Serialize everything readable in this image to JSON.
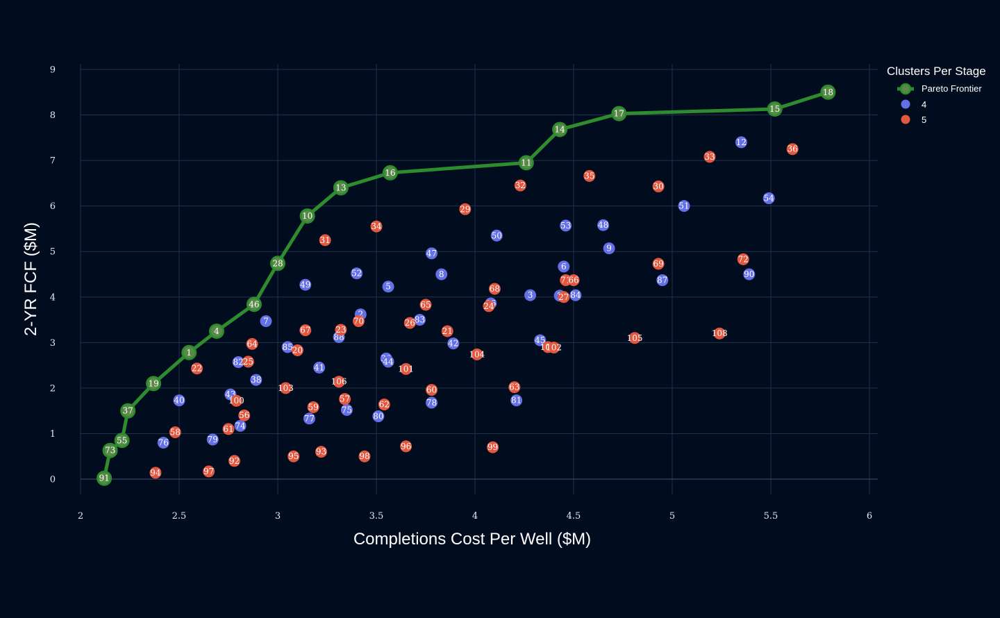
{
  "chart_data": {
    "type": "scatter",
    "title": "",
    "xlabel": "Completions Cost Per Well ($M)",
    "ylabel": "2-YR FCF ($M)",
    "xlim": [
      2,
      6.05
    ],
    "ylim": [
      -0.35,
      9.2
    ],
    "xticks": [
      2,
      2.5,
      3,
      3.5,
      4,
      4.5,
      5,
      5.5,
      6
    ],
    "xtick_labels": [
      "2",
      "2.5",
      "3",
      "3.5",
      "4",
      "4.5",
      "5",
      "5.5",
      "6"
    ],
    "yticks": [
      0,
      1,
      2,
      3,
      4,
      5,
      6,
      7,
      8,
      9
    ],
    "ytick_labels": [
      "0",
      "1",
      "2",
      "3",
      "4",
      "5",
      "6",
      "7",
      "8",
      "9"
    ],
    "grid": true,
    "legend": {
      "title": "Clusters Per Stage",
      "position": "top-right",
      "entries": [
        {
          "label": "Pareto Frontier",
          "kind": "line-marker",
          "color": "#2e8b2e"
        },
        {
          "label": "4",
          "kind": "marker",
          "color": "#6470e6"
        },
        {
          "label": "5",
          "kind": "marker",
          "color": "#e2573f"
        }
      ]
    },
    "colors": {
      "pareto_line": "#2e8b2e",
      "pareto_marker_fill": "#5a8a4a",
      "cluster_4": "#6470e6",
      "cluster_5": "#e2573f",
      "grid": "#22314a",
      "background": "#010c1e",
      "text": "#ffffff"
    },
    "pareto_frontier": [
      {
        "id": "91",
        "x": 2.12,
        "y": 0.02
      },
      {
        "id": "73",
        "x": 2.15,
        "y": 0.63
      },
      {
        "id": "55",
        "x": 2.21,
        "y": 0.85
      },
      {
        "id": "37",
        "x": 2.24,
        "y": 1.5
      },
      {
        "id": "19",
        "x": 2.37,
        "y": 2.1
      },
      {
        "id": "1",
        "x": 2.55,
        "y": 2.78
      },
      {
        "id": "4",
        "x": 2.69,
        "y": 3.25
      },
      {
        "id": "46",
        "x": 2.88,
        "y": 3.84
      },
      {
        "id": "28",
        "x": 3.0,
        "y": 4.74
      },
      {
        "id": "10",
        "x": 3.15,
        "y": 5.78
      },
      {
        "id": "13",
        "x": 3.32,
        "y": 6.4
      },
      {
        "id": "16",
        "x": 3.57,
        "y": 6.73
      },
      {
        "id": "11",
        "x": 4.26,
        "y": 6.95
      },
      {
        "id": "14",
        "x": 4.43,
        "y": 7.68
      },
      {
        "id": "17",
        "x": 4.73,
        "y": 8.03
      },
      {
        "id": "15",
        "x": 5.52,
        "y": 8.13
      },
      {
        "id": "18",
        "x": 5.79,
        "y": 8.5
      }
    ],
    "series": [
      {
        "name": "4",
        "points": [
          {
            "id": "12",
            "x": 5.35,
            "y": 7.4
          },
          {
            "id": "54",
            "x": 5.49,
            "y": 6.17
          },
          {
            "id": "51",
            "x": 5.06,
            "y": 6.0
          },
          {
            "id": "53",
            "x": 4.46,
            "y": 5.57
          },
          {
            "id": "48",
            "x": 4.65,
            "y": 5.58
          },
          {
            "id": "50",
            "x": 4.11,
            "y": 5.35
          },
          {
            "id": "9",
            "x": 4.68,
            "y": 5.07
          },
          {
            "id": "47",
            "x": 3.78,
            "y": 4.96
          },
          {
            "id": "6",
            "x": 4.45,
            "y": 4.67
          },
          {
            "id": "52",
            "x": 3.4,
            "y": 4.52
          },
          {
            "id": "8",
            "x": 3.83,
            "y": 4.5
          },
          {
            "id": "90",
            "x": 5.39,
            "y": 4.5
          },
          {
            "id": "87",
            "x": 4.95,
            "y": 4.37
          },
          {
            "id": "49",
            "x": 3.14,
            "y": 4.27
          },
          {
            "id": "5",
            "x": 3.56,
            "y": 4.23
          },
          {
            "id": "3",
            "x": 4.28,
            "y": 4.04
          },
          {
            "id": "2",
            "x": 4.43,
            "y": 4.03
          },
          {
            "id": "84",
            "x": 4.51,
            "y": 4.04
          },
          {
            "id": "86",
            "x": 4.08,
            "y": 3.86
          },
          {
            "id": "2",
            "x": 3.42,
            "y": 3.62
          },
          {
            "id": "7",
            "x": 2.94,
            "y": 3.47
          },
          {
            "id": "83",
            "x": 3.72,
            "y": 3.5
          },
          {
            "id": "88",
            "x": 3.31,
            "y": 3.12
          },
          {
            "id": "45",
            "x": 4.33,
            "y": 3.05
          },
          {
            "id": "42",
            "x": 3.89,
            "y": 2.98
          },
          {
            "id": "85",
            "x": 3.05,
            "y": 2.9
          },
          {
            "id": "82",
            "x": 2.8,
            "y": 2.57
          },
          {
            "id": "39",
            "x": 3.55,
            "y": 2.65
          },
          {
            "id": "44",
            "x": 3.56,
            "y": 2.58
          },
          {
            "id": "41",
            "x": 3.21,
            "y": 2.45
          },
          {
            "id": "38",
            "x": 2.89,
            "y": 2.18
          },
          {
            "id": "40",
            "x": 2.5,
            "y": 1.73
          },
          {
            "id": "43",
            "x": 2.76,
            "y": 1.86
          },
          {
            "id": "81",
            "x": 4.21,
            "y": 1.73
          },
          {
            "id": "78",
            "x": 3.78,
            "y": 1.68
          },
          {
            "id": "75",
            "x": 3.35,
            "y": 1.52
          },
          {
            "id": "77",
            "x": 3.16,
            "y": 1.33
          },
          {
            "id": "80",
            "x": 3.51,
            "y": 1.38
          },
          {
            "id": "74",
            "x": 2.81,
            "y": 1.17
          },
          {
            "id": "79",
            "x": 2.67,
            "y": 0.87
          },
          {
            "id": "76",
            "x": 2.42,
            "y": 0.8
          }
        ]
      },
      {
        "name": "5",
        "points": [
          {
            "id": "36",
            "x": 5.61,
            "y": 7.25
          },
          {
            "id": "33",
            "x": 5.19,
            "y": 7.08
          },
          {
            "id": "35",
            "x": 4.58,
            "y": 6.66
          },
          {
            "id": "32",
            "x": 4.23,
            "y": 6.45
          },
          {
            "id": "30",
            "x": 4.93,
            "y": 6.43
          },
          {
            "id": "29",
            "x": 3.95,
            "y": 5.93
          },
          {
            "id": "34",
            "x": 3.5,
            "y": 5.55
          },
          {
            "id": "31",
            "x": 3.24,
            "y": 5.25
          },
          {
            "id": "72",
            "x": 5.36,
            "y": 4.83
          },
          {
            "id": "69",
            "x": 4.93,
            "y": 4.73
          },
          {
            "id": "71",
            "x": 4.46,
            "y": 4.37
          },
          {
            "id": "66",
            "x": 4.5,
            "y": 4.37
          },
          {
            "id": "68",
            "x": 4.1,
            "y": 4.18
          },
          {
            "id": "27",
            "x": 4.45,
            "y": 4.0
          },
          {
            "id": "24",
            "x": 4.07,
            "y": 3.8
          },
          {
            "id": "65",
            "x": 3.75,
            "y": 3.83
          },
          {
            "id": "70",
            "x": 3.41,
            "y": 3.47
          },
          {
            "id": "26",
            "x": 3.67,
            "y": 3.43
          },
          {
            "id": "67",
            "x": 3.14,
            "y": 3.27
          },
          {
            "id": "23",
            "x": 3.32,
            "y": 3.28
          },
          {
            "id": "21",
            "x": 3.86,
            "y": 3.25
          },
          {
            "id": "105",
            "x": 4.81,
            "y": 3.1
          },
          {
            "id": "108",
            "x": 5.24,
            "y": 3.2
          },
          {
            "id": "64",
            "x": 2.87,
            "y": 2.97
          },
          {
            "id": "20",
            "x": 3.1,
            "y": 2.83
          },
          {
            "id": "107",
            "x": 4.37,
            "y": 2.9
          },
          {
            "id": "102",
            "x": 4.4,
            "y": 2.89
          },
          {
            "id": "104",
            "x": 4.01,
            "y": 2.74
          },
          {
            "id": "25",
            "x": 2.85,
            "y": 2.58
          },
          {
            "id": "22",
            "x": 2.59,
            "y": 2.43
          },
          {
            "id": "101",
            "x": 3.65,
            "y": 2.42
          },
          {
            "id": "106",
            "x": 3.31,
            "y": 2.14
          },
          {
            "id": "103",
            "x": 3.04,
            "y": 2.0
          },
          {
            "id": "63",
            "x": 4.2,
            "y": 2.02
          },
          {
            "id": "60",
            "x": 3.78,
            "y": 1.96
          },
          {
            "id": "100",
            "x": 2.79,
            "y": 1.72
          },
          {
            "id": "57",
            "x": 3.34,
            "y": 1.76
          },
          {
            "id": "62",
            "x": 3.54,
            "y": 1.64
          },
          {
            "id": "59",
            "x": 3.18,
            "y": 1.58
          },
          {
            "id": "56",
            "x": 2.83,
            "y": 1.4
          },
          {
            "id": "61",
            "x": 2.75,
            "y": 1.1
          },
          {
            "id": "58",
            "x": 2.48,
            "y": 1.03
          },
          {
            "id": "99",
            "x": 4.09,
            "y": 0.7
          },
          {
            "id": "96",
            "x": 3.65,
            "y": 0.72
          },
          {
            "id": "93",
            "x": 3.22,
            "y": 0.6
          },
          {
            "id": "95",
            "x": 3.08,
            "y": 0.5
          },
          {
            "id": "98",
            "x": 3.44,
            "y": 0.5
          },
          {
            "id": "92",
            "x": 2.78,
            "y": 0.4
          },
          {
            "id": "94",
            "x": 2.38,
            "y": 0.14
          },
          {
            "id": "97",
            "x": 2.65,
            "y": 0.17
          }
        ]
      }
    ]
  }
}
